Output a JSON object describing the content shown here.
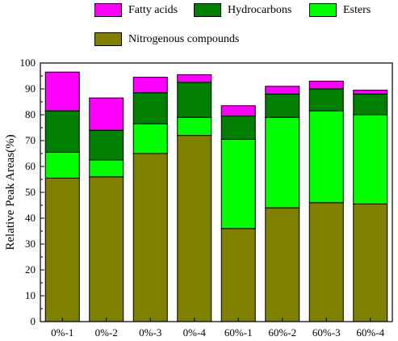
{
  "chart_data": {
    "type": "bar",
    "stacked": true,
    "categories": [
      "0%-1",
      "0%-2",
      "0%-3",
      "0%-4",
      "60%-1",
      "60%-2",
      "60%-3",
      "60%-4"
    ],
    "series": [
      {
        "name": "Nitrogenous compounds",
        "color": "#808000",
        "values": [
          55.5,
          56.0,
          65.0,
          72.0,
          36.0,
          44.0,
          46.0,
          45.5
        ]
      },
      {
        "name": "Esters",
        "color": "#00ff00",
        "values": [
          10.0,
          6.5,
          11.5,
          7.0,
          34.5,
          35.0,
          35.5,
          34.5
        ]
      },
      {
        "name": "Hydrocarbons",
        "color": "#007f00",
        "values": [
          16.0,
          11.5,
          12.0,
          13.5,
          9.0,
          9.0,
          8.5,
          8.0
        ]
      },
      {
        "name": "Fatty acids",
        "color": "#ff00ff",
        "values": [
          15.0,
          12.5,
          6.0,
          3.0,
          4.0,
          3.0,
          3.0,
          1.5
        ]
      }
    ],
    "xlabel": "",
    "ylabel": "Relative Peak Areas(%)",
    "ylim": [
      0,
      100
    ],
    "yticks": [
      0,
      10,
      20,
      30,
      40,
      50,
      60,
      70,
      80,
      90,
      100
    ],
    "grid": false,
    "legend_position": "top"
  }
}
